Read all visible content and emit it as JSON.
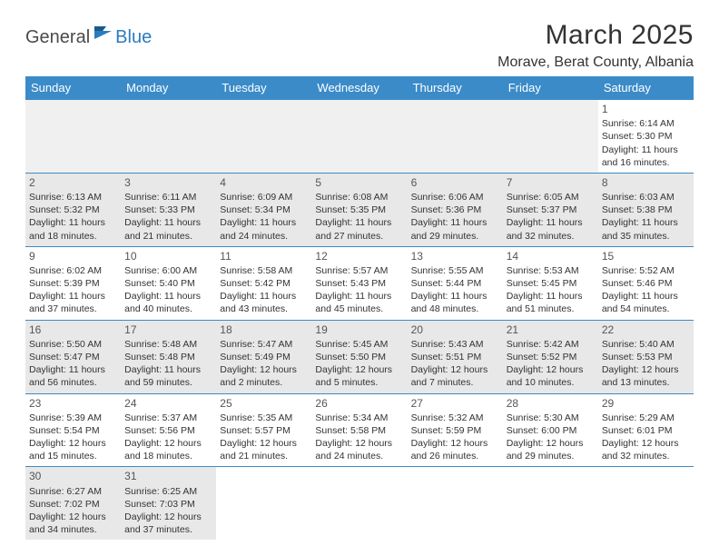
{
  "logo": {
    "part1": "General",
    "part2": "Blue"
  },
  "title": "March 2025",
  "location": "Morave, Berat County, Albania",
  "colors": {
    "headerBg": "#3b8bc9",
    "headerText": "#ffffff",
    "altRow": "#e8e8e8",
    "border": "#3b8bc9",
    "logoAccent": "#2b7bbf",
    "text": "#333333"
  },
  "dayHeaders": [
    "Sunday",
    "Monday",
    "Tuesday",
    "Wednesday",
    "Thursday",
    "Friday",
    "Saturday"
  ],
  "weeks": [
    [
      null,
      null,
      null,
      null,
      null,
      null,
      {
        "n": "1",
        "sr": "Sunrise: 6:14 AM",
        "ss": "Sunset: 5:30 PM",
        "dl": "Daylight: 11 hours and 16 minutes."
      }
    ],
    [
      {
        "n": "2",
        "sr": "Sunrise: 6:13 AM",
        "ss": "Sunset: 5:32 PM",
        "dl": "Daylight: 11 hours and 18 minutes."
      },
      {
        "n": "3",
        "sr": "Sunrise: 6:11 AM",
        "ss": "Sunset: 5:33 PM",
        "dl": "Daylight: 11 hours and 21 minutes."
      },
      {
        "n": "4",
        "sr": "Sunrise: 6:09 AM",
        "ss": "Sunset: 5:34 PM",
        "dl": "Daylight: 11 hours and 24 minutes."
      },
      {
        "n": "5",
        "sr": "Sunrise: 6:08 AM",
        "ss": "Sunset: 5:35 PM",
        "dl": "Daylight: 11 hours and 27 minutes."
      },
      {
        "n": "6",
        "sr": "Sunrise: 6:06 AM",
        "ss": "Sunset: 5:36 PM",
        "dl": "Daylight: 11 hours and 29 minutes."
      },
      {
        "n": "7",
        "sr": "Sunrise: 6:05 AM",
        "ss": "Sunset: 5:37 PM",
        "dl": "Daylight: 11 hours and 32 minutes."
      },
      {
        "n": "8",
        "sr": "Sunrise: 6:03 AM",
        "ss": "Sunset: 5:38 PM",
        "dl": "Daylight: 11 hours and 35 minutes."
      }
    ],
    [
      {
        "n": "9",
        "sr": "Sunrise: 6:02 AM",
        "ss": "Sunset: 5:39 PM",
        "dl": "Daylight: 11 hours and 37 minutes."
      },
      {
        "n": "10",
        "sr": "Sunrise: 6:00 AM",
        "ss": "Sunset: 5:40 PM",
        "dl": "Daylight: 11 hours and 40 minutes."
      },
      {
        "n": "11",
        "sr": "Sunrise: 5:58 AM",
        "ss": "Sunset: 5:42 PM",
        "dl": "Daylight: 11 hours and 43 minutes."
      },
      {
        "n": "12",
        "sr": "Sunrise: 5:57 AM",
        "ss": "Sunset: 5:43 PM",
        "dl": "Daylight: 11 hours and 45 minutes."
      },
      {
        "n": "13",
        "sr": "Sunrise: 5:55 AM",
        "ss": "Sunset: 5:44 PM",
        "dl": "Daylight: 11 hours and 48 minutes."
      },
      {
        "n": "14",
        "sr": "Sunrise: 5:53 AM",
        "ss": "Sunset: 5:45 PM",
        "dl": "Daylight: 11 hours and 51 minutes."
      },
      {
        "n": "15",
        "sr": "Sunrise: 5:52 AM",
        "ss": "Sunset: 5:46 PM",
        "dl": "Daylight: 11 hours and 54 minutes."
      }
    ],
    [
      {
        "n": "16",
        "sr": "Sunrise: 5:50 AM",
        "ss": "Sunset: 5:47 PM",
        "dl": "Daylight: 11 hours and 56 minutes."
      },
      {
        "n": "17",
        "sr": "Sunrise: 5:48 AM",
        "ss": "Sunset: 5:48 PM",
        "dl": "Daylight: 11 hours and 59 minutes."
      },
      {
        "n": "18",
        "sr": "Sunrise: 5:47 AM",
        "ss": "Sunset: 5:49 PM",
        "dl": "Daylight: 12 hours and 2 minutes."
      },
      {
        "n": "19",
        "sr": "Sunrise: 5:45 AM",
        "ss": "Sunset: 5:50 PM",
        "dl": "Daylight: 12 hours and 5 minutes."
      },
      {
        "n": "20",
        "sr": "Sunrise: 5:43 AM",
        "ss": "Sunset: 5:51 PM",
        "dl": "Daylight: 12 hours and 7 minutes."
      },
      {
        "n": "21",
        "sr": "Sunrise: 5:42 AM",
        "ss": "Sunset: 5:52 PM",
        "dl": "Daylight: 12 hours and 10 minutes."
      },
      {
        "n": "22",
        "sr": "Sunrise: 5:40 AM",
        "ss": "Sunset: 5:53 PM",
        "dl": "Daylight: 12 hours and 13 minutes."
      }
    ],
    [
      {
        "n": "23",
        "sr": "Sunrise: 5:39 AM",
        "ss": "Sunset: 5:54 PM",
        "dl": "Daylight: 12 hours and 15 minutes."
      },
      {
        "n": "24",
        "sr": "Sunrise: 5:37 AM",
        "ss": "Sunset: 5:56 PM",
        "dl": "Daylight: 12 hours and 18 minutes."
      },
      {
        "n": "25",
        "sr": "Sunrise: 5:35 AM",
        "ss": "Sunset: 5:57 PM",
        "dl": "Daylight: 12 hours and 21 minutes."
      },
      {
        "n": "26",
        "sr": "Sunrise: 5:34 AM",
        "ss": "Sunset: 5:58 PM",
        "dl": "Daylight: 12 hours and 24 minutes."
      },
      {
        "n": "27",
        "sr": "Sunrise: 5:32 AM",
        "ss": "Sunset: 5:59 PM",
        "dl": "Daylight: 12 hours and 26 minutes."
      },
      {
        "n": "28",
        "sr": "Sunrise: 5:30 AM",
        "ss": "Sunset: 6:00 PM",
        "dl": "Daylight: 12 hours and 29 minutes."
      },
      {
        "n": "29",
        "sr": "Sunrise: 5:29 AM",
        "ss": "Sunset: 6:01 PM",
        "dl": "Daylight: 12 hours and 32 minutes."
      }
    ],
    [
      {
        "n": "30",
        "sr": "Sunrise: 6:27 AM",
        "ss": "Sunset: 7:02 PM",
        "dl": "Daylight: 12 hours and 34 minutes."
      },
      {
        "n": "31",
        "sr": "Sunrise: 6:25 AM",
        "ss": "Sunset: 7:03 PM",
        "dl": "Daylight: 12 hours and 37 minutes."
      },
      null,
      null,
      null,
      null,
      null
    ]
  ]
}
